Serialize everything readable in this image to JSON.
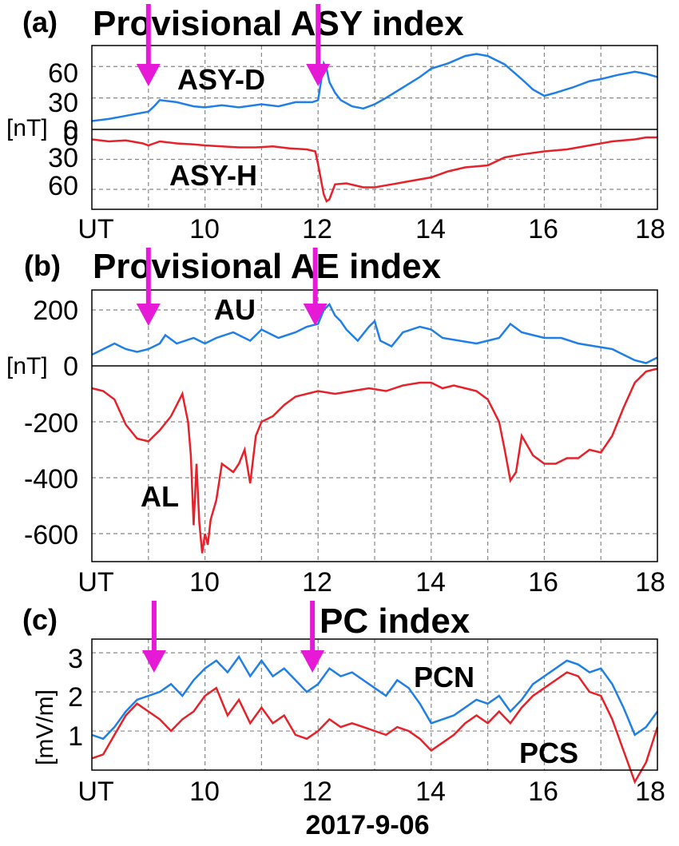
{
  "colors": {
    "blue": "#1f7fe6",
    "red": "#e62129",
    "magenta": "#e619d6",
    "grid": "#888888"
  },
  "date_label": "2017-9-06",
  "arrows": [
    {
      "panel": "a",
      "time": 9.0
    },
    {
      "panel": "a",
      "time": 12.0
    },
    {
      "panel": "b",
      "time": 9.0
    },
    {
      "panel": "b",
      "time": 11.95
    },
    {
      "panel": "c",
      "time": 9.1
    },
    {
      "panel": "c",
      "time": 11.9
    }
  ],
  "chart_data": [
    {
      "type": "line",
      "panel_tag": "(a)",
      "title": "Provisional ASY index",
      "x_tick_labels": [
        "UT",
        "10",
        "12",
        "14",
        "16",
        "18"
      ],
      "xlim": [
        8,
        18
      ],
      "unit_label": "[nT]",
      "upper": {
        "ylim": [
          0,
          80
        ],
        "y_ticks": [
          0,
          30,
          60
        ],
        "y_tick_labels": [
          "0",
          "30",
          "60"
        ],
        "series": [
          {
            "name": "ASY-D",
            "color": "#1f7fe6",
            "x": [
              8.0,
              8.3,
              8.5,
              8.8,
              9.0,
              9.1,
              9.2,
              9.5,
              9.8,
              10.0,
              10.3,
              10.6,
              11.0,
              11.3,
              11.6,
              11.9,
              12.0,
              12.05,
              12.1,
              12.15,
              12.2,
              12.3,
              12.4,
              12.6,
              12.8,
              13.0,
              13.2,
              13.5,
              13.8,
              14.0,
              14.3,
              14.6,
              14.8,
              15.0,
              15.3,
              15.6,
              15.8,
              16.0,
              16.2,
              16.5,
              16.8,
              17.0,
              17.3,
              17.6,
              17.8,
              18.0
            ],
            "y": [
              8,
              10,
              12,
              15,
              17,
              22,
              28,
              26,
              22,
              21,
              23,
              21,
              24,
              22,
              26,
              26,
              28,
              45,
              63,
              58,
              45,
              35,
              28,
              22,
              20,
              24,
              30,
              40,
              50,
              58,
              63,
              70,
              72,
              70,
              62,
              48,
              38,
              32,
              35,
              40,
              46,
              48,
              52,
              55,
              53,
              50
            ]
          }
        ]
      },
      "lower": {
        "ylim": [
          0,
          80
        ],
        "y_ticks": [
          0,
          30,
          60
        ],
        "y_tick_labels": [
          "0",
          "30",
          "60"
        ],
        "series": [
          {
            "name": "ASY-H",
            "color": "#e62129",
            "x": [
              8.0,
              8.3,
              8.6,
              8.9,
              9.0,
              9.2,
              9.5,
              9.8,
              10.0,
              10.3,
              10.6,
              10.9,
              11.2,
              11.5,
              11.8,
              11.95,
              12.0,
              12.05,
              12.1,
              12.15,
              12.2,
              12.3,
              12.5,
              12.8,
              13.0,
              13.3,
              13.6,
              14.0,
              14.3,
              14.6,
              15.0,
              15.3,
              15.6,
              16.0,
              16.4,
              16.8,
              17.2,
              17.6,
              17.8,
              18.0
            ],
            "y": [
              10,
              12,
              11,
              14,
              16,
              12,
              14,
              15,
              16,
              17,
              18,
              18,
              17,
              19,
              20,
              22,
              35,
              50,
              65,
              72,
              70,
              55,
              54,
              58,
              58,
              55,
              52,
              48,
              42,
              38,
              36,
              28,
              25,
              22,
              20,
              16,
              12,
              10,
              8,
              8
            ]
          }
        ]
      }
    },
    {
      "type": "line",
      "panel_tag": "(b)",
      "title": "Provisional AE index",
      "x_tick_labels": [
        "UT",
        "10",
        "12",
        "14",
        "16",
        "18"
      ],
      "xlim": [
        8,
        18
      ],
      "unit_label": "[nT]",
      "ylim": [
        -700,
        270
      ],
      "y_ticks": [
        -600,
        -400,
        -200,
        0,
        200
      ],
      "y_tick_labels": [
        "-600",
        "-400",
        "-200",
        "0",
        "200"
      ],
      "series": [
        {
          "name": "AU",
          "color": "#1f7fe6",
          "x": [
            8.0,
            8.2,
            8.4,
            8.6,
            8.8,
            9.0,
            9.2,
            9.3,
            9.5,
            9.8,
            10.0,
            10.2,
            10.5,
            10.8,
            11.0,
            11.3,
            11.6,
            11.8,
            12.0,
            12.1,
            12.2,
            12.3,
            12.4,
            12.5,
            12.7,
            12.9,
            13.0,
            13.1,
            13.3,
            13.5,
            13.8,
            14.0,
            14.2,
            14.5,
            14.8,
            15.0,
            15.2,
            15.4,
            15.6,
            15.8,
            16.0,
            16.3,
            16.6,
            16.9,
            17.2,
            17.4,
            17.6,
            17.8,
            18.0
          ],
          "y": [
            40,
            60,
            80,
            60,
            50,
            60,
            80,
            110,
            80,
            100,
            80,
            100,
            120,
            90,
            130,
            100,
            120,
            140,
            150,
            200,
            220,
            180,
            160,
            130,
            90,
            140,
            160,
            90,
            70,
            120,
            140,
            130,
            100,
            90,
            80,
            90,
            100,
            150,
            120,
            110,
            100,
            100,
            80,
            70,
            60,
            40,
            20,
            10,
            30
          ]
        },
        {
          "name": "AL",
          "color": "#e62129",
          "x": [
            8.0,
            8.2,
            8.4,
            8.6,
            8.8,
            9.0,
            9.2,
            9.4,
            9.6,
            9.7,
            9.75,
            9.8,
            9.85,
            9.9,
            9.95,
            10.0,
            10.05,
            10.1,
            10.2,
            10.3,
            10.5,
            10.6,
            10.7,
            10.8,
            10.9,
            11.0,
            11.2,
            11.4,
            11.6,
            11.8,
            12.0,
            12.3,
            12.6,
            12.9,
            13.2,
            13.5,
            13.8,
            14.0,
            14.2,
            14.4,
            14.6,
            14.8,
            15.0,
            15.2,
            15.3,
            15.4,
            15.5,
            15.6,
            15.8,
            16.0,
            16.2,
            16.4,
            16.6,
            16.8,
            17.0,
            17.2,
            17.4,
            17.6,
            17.8,
            18.0
          ],
          "y": [
            -80,
            -90,
            -120,
            -210,
            -260,
            -270,
            -230,
            -180,
            -100,
            -200,
            -320,
            -570,
            -350,
            -560,
            -670,
            -600,
            -640,
            -550,
            -480,
            -350,
            -380,
            -350,
            -300,
            -420,
            -250,
            -200,
            -180,
            -140,
            -110,
            -100,
            -90,
            -100,
            -90,
            -80,
            -90,
            -70,
            -60,
            -60,
            -80,
            -70,
            -80,
            -90,
            -120,
            -200,
            -300,
            -410,
            -380,
            -250,
            -320,
            -350,
            -350,
            -330,
            -330,
            -300,
            -310,
            -250,
            -150,
            -60,
            -20,
            -10
          ]
        }
      ]
    },
    {
      "type": "line",
      "panel_tag": "(c)",
      "title": "PC index",
      "x_tick_labels": [
        "UT",
        "10",
        "12",
        "14",
        "16",
        "18"
      ],
      "xlim": [
        8,
        18
      ],
      "ylabel": "[mV/m]",
      "ylim": [
        0,
        3.35
      ],
      "y_ticks": [
        1,
        2,
        3
      ],
      "y_tick_labels": [
        "1",
        "2",
        "3"
      ],
      "series": [
        {
          "name": "PCN",
          "color": "#1f7fe6",
          "x": [
            8.0,
            8.2,
            8.4,
            8.6,
            8.8,
            9.0,
            9.2,
            9.4,
            9.6,
            9.8,
            10.0,
            10.2,
            10.4,
            10.6,
            10.8,
            11.0,
            11.2,
            11.4,
            11.6,
            11.8,
            12.0,
            12.2,
            12.4,
            12.6,
            12.8,
            13.0,
            13.2,
            13.4,
            13.6,
            13.8,
            14.0,
            14.2,
            14.4,
            14.6,
            14.8,
            15.0,
            15.2,
            15.4,
            15.6,
            15.8,
            16.0,
            16.2,
            16.4,
            16.6,
            16.8,
            17.0,
            17.2,
            17.4,
            17.6,
            17.8,
            18.0
          ],
          "y": [
            0.9,
            0.8,
            1.1,
            1.5,
            1.8,
            1.9,
            2.0,
            2.2,
            1.9,
            2.3,
            2.6,
            2.8,
            2.5,
            2.9,
            2.4,
            2.8,
            2.4,
            2.6,
            2.3,
            2.0,
            2.2,
            2.6,
            2.4,
            2.5,
            2.3,
            2.1,
            1.9,
            2.3,
            2.1,
            1.7,
            1.2,
            1.3,
            1.4,
            1.6,
            1.8,
            1.7,
            1.9,
            1.5,
            1.8,
            2.2,
            2.4,
            2.6,
            2.8,
            2.7,
            2.5,
            2.6,
            2.2,
            1.6,
            0.9,
            1.1,
            1.5
          ]
        },
        {
          "name": "PCS",
          "color": "#e62129",
          "x": [
            8.0,
            8.2,
            8.4,
            8.6,
            8.8,
            9.0,
            9.2,
            9.4,
            9.6,
            9.8,
            10.0,
            10.2,
            10.4,
            10.6,
            10.8,
            11.0,
            11.2,
            11.4,
            11.6,
            11.8,
            12.0,
            12.2,
            12.4,
            12.6,
            12.8,
            13.0,
            13.2,
            13.4,
            13.6,
            13.8,
            14.0,
            14.2,
            14.4,
            14.6,
            14.8,
            15.0,
            15.2,
            15.4,
            15.6,
            15.8,
            16.0,
            16.2,
            16.4,
            16.6,
            16.8,
            17.0,
            17.2,
            17.4,
            17.6,
            17.8,
            18.0
          ],
          "y": [
            0.3,
            0.4,
            0.9,
            1.4,
            1.7,
            1.5,
            1.3,
            1.0,
            1.3,
            1.5,
            1.9,
            2.1,
            1.4,
            1.8,
            1.2,
            1.6,
            1.2,
            1.4,
            0.9,
            0.8,
            1.0,
            1.3,
            1.1,
            1.2,
            1.1,
            1.0,
            0.9,
            1.1,
            1.0,
            0.8,
            0.5,
            0.7,
            0.9,
            1.2,
            1.4,
            1.2,
            1.5,
            1.2,
            1.6,
            1.9,
            2.1,
            2.3,
            2.5,
            2.4,
            2.0,
            1.9,
            1.3,
            0.5,
            -0.3,
            0.2,
            1.1
          ]
        }
      ]
    }
  ]
}
